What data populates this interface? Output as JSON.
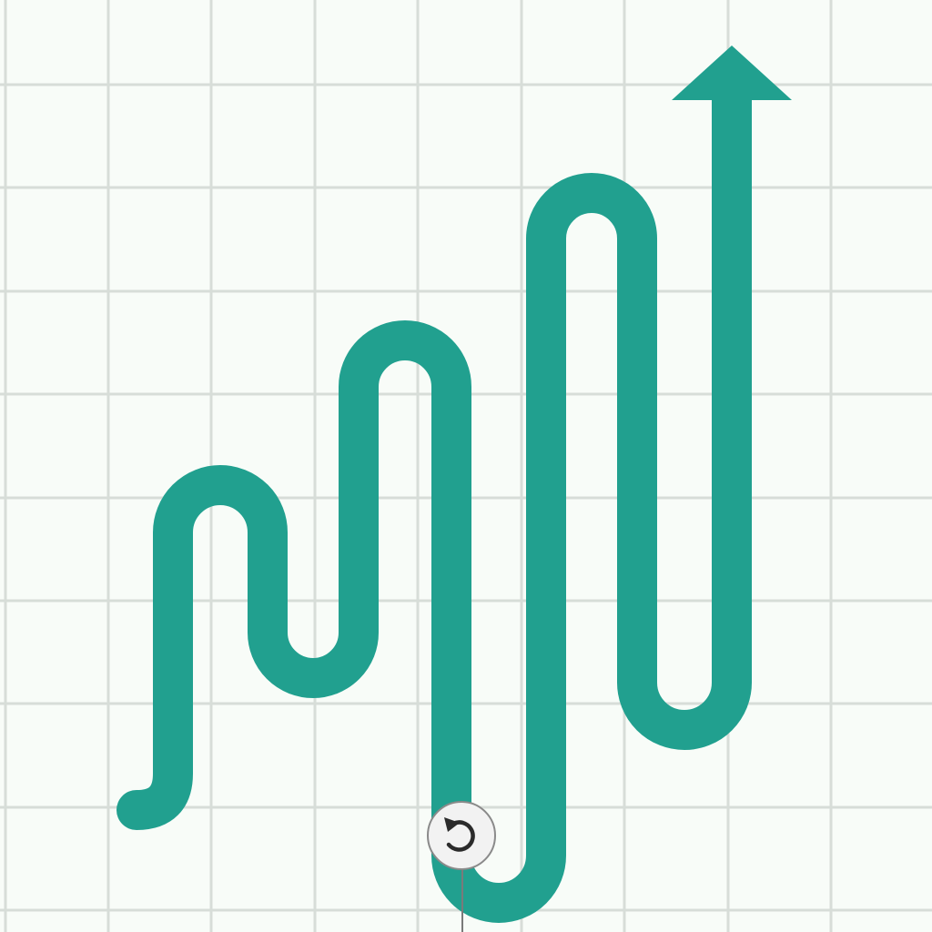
{
  "canvas": {
    "background_color": "#f8fcf8",
    "grid_color": "#d7ddd8",
    "grid_visible": true
  },
  "shape": {
    "kind": "squiggle-arrow",
    "direction": "up",
    "color": "#21a08f",
    "selected": true
  },
  "rotate_handle": {
    "icon": "rotate-icon",
    "icon_glyph": "⟲",
    "fill_color": "#f2f2f2",
    "border_color": "#8a8a8a",
    "icon_color": "#2b2b2b"
  }
}
